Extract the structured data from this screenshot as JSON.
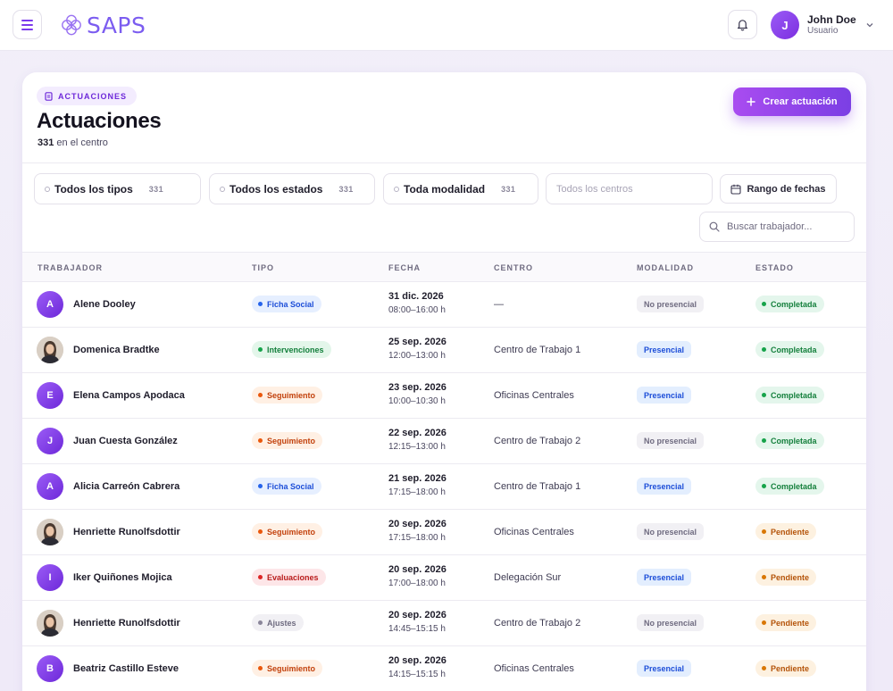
{
  "header": {
    "logo_text": "SAPS",
    "user": {
      "initial": "J",
      "name": "John Doe",
      "role": "Usuario"
    }
  },
  "page": {
    "breadcrumb": "ACTUACIONES",
    "title": "Actuaciones",
    "count": "331",
    "count_suffix": "en el centro",
    "create_label": "Crear actuación"
  },
  "filters": {
    "tipo": {
      "label": "Todos los tipos",
      "count": "331"
    },
    "estado": {
      "label": "Todos los estados",
      "count": "331"
    },
    "modalidad": {
      "label": "Toda modalidad",
      "count": "331"
    },
    "centros_placeholder": "Todos los centros",
    "date_range_label": "Rango de fechas",
    "search_placeholder": "Buscar trabajador..."
  },
  "table": {
    "columns": [
      "TRABAJADOR",
      "TIPO",
      "FECHA",
      "CENTRO",
      "MODALIDAD",
      "ESTADO"
    ],
    "rows": [
      {
        "avatar": "A",
        "photo": false,
        "worker": "Alene Dooley",
        "tipo": "Ficha Social",
        "tipo_kind": "blue",
        "fecha": "31 dic. 2026",
        "hora": "08:00–16:00 h",
        "centro": "—",
        "modalidad": "No presencial",
        "estado": "Completada"
      },
      {
        "avatar": "",
        "photo": true,
        "worker": "Domenica Bradtke",
        "tipo": "Intervenciones",
        "tipo_kind": "green",
        "fecha": "25 sep. 2026",
        "hora": "12:00–13:00 h",
        "centro": "Centro de Trabajo 1",
        "modalidad": "Presencial",
        "estado": "Completada"
      },
      {
        "avatar": "E",
        "photo": false,
        "worker": "Elena Campos Apodaca",
        "tipo": "Seguimiento",
        "tipo_kind": "orange",
        "fecha": "23 sep. 2026",
        "hora": "10:00–10:30 h",
        "centro": "Oficinas Centrales",
        "modalidad": "Presencial",
        "estado": "Completada"
      },
      {
        "avatar": "J",
        "photo": false,
        "worker": "Juan Cuesta González",
        "tipo": "Seguimiento",
        "tipo_kind": "orange",
        "fecha": "22 sep. 2026",
        "hora": "12:15–13:00 h",
        "centro": "Centro de Trabajo 2",
        "modalidad": "No presencial",
        "estado": "Completada"
      },
      {
        "avatar": "A",
        "photo": false,
        "worker": "Alicia Carreón Cabrera",
        "tipo": "Ficha Social",
        "tipo_kind": "blue",
        "fecha": "21 sep. 2026",
        "hora": "17:15–18:00 h",
        "centro": "Centro de Trabajo 1",
        "modalidad": "Presencial",
        "estado": "Completada"
      },
      {
        "avatar": "",
        "photo": true,
        "worker": "Henriette Runolfsdottir",
        "tipo": "Seguimiento",
        "tipo_kind": "orange",
        "fecha": "20 sep. 2026",
        "hora": "17:15–18:00 h",
        "centro": "Oficinas Centrales",
        "modalidad": "No presencial",
        "estado": "Pendiente"
      },
      {
        "avatar": "I",
        "photo": false,
        "worker": "Iker Quiñones Mojica",
        "tipo": "Evaluaciones",
        "tipo_kind": "red",
        "fecha": "20 sep. 2026",
        "hora": "17:00–18:00 h",
        "centro": "Delegación Sur",
        "modalidad": "Presencial",
        "estado": "Pendiente"
      },
      {
        "avatar": "",
        "photo": true,
        "worker": "Henriette Runolfsdottir",
        "tipo": "Ajustes",
        "tipo_kind": "gray",
        "fecha": "20 sep. 2026",
        "hora": "14:45–15:15 h",
        "centro": "Centro de Trabajo 2",
        "modalidad": "No presencial",
        "estado": "Pendiente"
      },
      {
        "avatar": "B",
        "photo": false,
        "worker": "Beatriz Castillo Esteve",
        "tipo": "Seguimiento",
        "tipo_kind": "orange",
        "fecha": "20 sep. 2026",
        "hora": "14:15–15:15 h",
        "centro": "Oficinas Centrales",
        "modalidad": "Presencial",
        "estado": "Pendiente"
      }
    ]
  },
  "colors": {
    "accent": "#7c3aed",
    "tipo_blue": "#2563eb",
    "tipo_green": "#16a34a",
    "tipo_orange": "#ea580c",
    "tipo_red": "#dc2626",
    "tipo_gray": "#8a869a",
    "estado_completada": "#15803d",
    "estado_pendiente": "#b45309"
  },
  "icons": [
    "hamburger-menu-icon",
    "saps-logo-icon",
    "bell-icon",
    "chevron-down-icon",
    "document-icon",
    "plus-icon",
    "calendar-icon",
    "search-icon"
  ]
}
